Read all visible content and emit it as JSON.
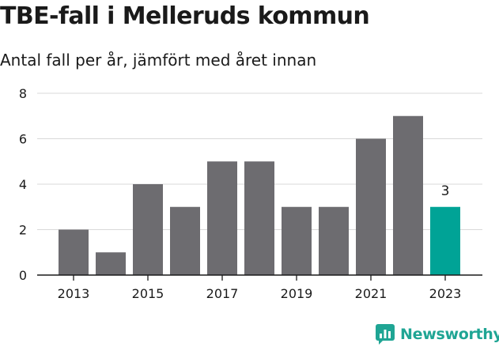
{
  "title": "TBE-fall i Melleruds kommun",
  "subtitle": "Antal fall per år, jämfört med året innan",
  "brand": "Newsworthy",
  "colors": {
    "bar": "#6d6c70",
    "highlight": "#00a396",
    "grid": "#d9d9d9",
    "axis": "#1a1a1a",
    "brand": "#1fa594"
  },
  "chart_data": {
    "type": "bar",
    "categories": [
      "2013",
      "2014",
      "2015",
      "2016",
      "2017",
      "2018",
      "2019",
      "2020",
      "2021",
      "2022",
      "2023"
    ],
    "values": [
      2,
      1,
      4,
      3,
      5,
      5,
      3,
      3,
      6,
      7,
      3
    ],
    "x_tick_labels": [
      "2013",
      "2015",
      "2017",
      "2019",
      "2021",
      "2023"
    ],
    "y_ticks": [
      0,
      2,
      4,
      6,
      8
    ],
    "ylim": [
      0,
      8
    ],
    "highlight_category": "2023",
    "data_labels": [
      {
        "category": "2023",
        "value": 3
      }
    ],
    "grid": true,
    "legend": "none"
  }
}
